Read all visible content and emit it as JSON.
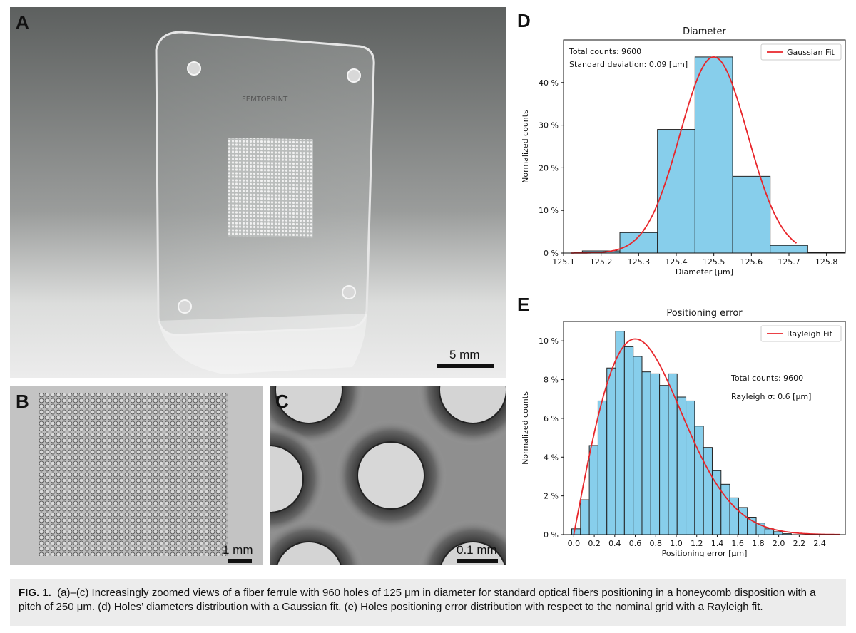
{
  "panels": {
    "a": {
      "letter": "A",
      "scale": "5 mm",
      "logo_text": "FEMTOPRINT"
    },
    "b": {
      "letter": "B",
      "scale": "1 mm"
    },
    "c": {
      "letter": "C",
      "scale": "0.1 mm"
    },
    "d": {
      "letter": "D"
    },
    "e": {
      "letter": "E"
    }
  },
  "chart_data": [
    {
      "id": "diameter",
      "type": "bar",
      "title": "Diameter",
      "xlabel": "Diameter [μm]",
      "ylabel": "Normalized counts",
      "xlim": [
        125.1,
        125.85
      ],
      "ylim": [
        0,
        50
      ],
      "xticks": [
        "125.1",
        "125.2",
        "125.3",
        "125.4",
        "125.5",
        "125.6",
        "125.7",
        "125.8"
      ],
      "yticks": [
        "0 %",
        "10 %",
        "20 %",
        "30 %",
        "40 %"
      ],
      "bin_width": 0.1,
      "bin_starts": [
        125.15,
        125.25,
        125.35,
        125.45,
        125.55,
        125.65,
        125.75
      ],
      "values": [
        0.5,
        4.8,
        29.0,
        46.0,
        18.0,
        1.8,
        0.1
      ],
      "fit": {
        "name": "Gaussian Fit",
        "type": "gaussian",
        "mean": 125.5,
        "sigma": 0.09,
        "peak": 46.0
      },
      "annotations": [
        "Total counts: 9600",
        "Standard deviation: 0.09 [μm]"
      ],
      "legend_position": "top-right",
      "colors": {
        "bar": "#87ceeb",
        "fit": "#e8262b",
        "edge": "#222222"
      }
    },
    {
      "id": "positioning",
      "type": "bar",
      "title": "Positioning error",
      "xlabel": "Positioning error [μm]",
      "ylabel": "Normalized counts",
      "xlim": [
        -0.1,
        2.65
      ],
      "ylim": [
        0,
        11
      ],
      "xticks": [
        "0.0",
        "0.2",
        "0.4",
        "0.6",
        "0.8",
        "1.0",
        "1.2",
        "1.4",
        "1.6",
        "1.8",
        "2.0",
        "2.2",
        "2.4"
      ],
      "yticks": [
        "0 %",
        "2 %",
        "4 %",
        "6 %",
        "8 %",
        "10 %"
      ],
      "bin_width": 0.0857,
      "bin_starts": [
        -0.02,
        0.0657,
        0.1514,
        0.2371,
        0.3229,
        0.4086,
        0.4943,
        0.58,
        0.6657,
        0.7514,
        0.8371,
        0.9229,
        1.0086,
        1.0943,
        1.18,
        1.2657,
        1.3514,
        1.4371,
        1.5229,
        1.6086,
        1.6943,
        1.78,
        1.8657,
        1.9514,
        2.0371
      ],
      "values": [
        0.3,
        1.8,
        4.6,
        6.9,
        8.6,
        10.5,
        9.7,
        9.2,
        8.4,
        8.3,
        7.7,
        8.3,
        7.1,
        6.9,
        5.6,
        4.5,
        3.3,
        2.6,
        1.9,
        1.4,
        0.9,
        0.6,
        0.3,
        0.15,
        0.05
      ],
      "fit": {
        "name": "Rayleigh Fit",
        "type": "rayleigh",
        "sigma": 0.6,
        "peak": 10.1,
        "x_max": 2.6
      },
      "annotations": [
        "Total counts: 9600",
        "Rayleigh σ: 0.6 [μm]"
      ],
      "legend_position": "top-right",
      "colors": {
        "bar": "#87ceeb",
        "fit": "#e8262b",
        "edge": "#222222"
      }
    }
  ],
  "caption": {
    "label": "FIG. 1.",
    "text_line1": "(a)–(c) Increasingly zoomed views of a fiber ferrule with 960 holes of 125 μm in diameter for standard optical fibers positioning in a honeycomb disposition with a",
    "text_line2": "pitch of 250 μm. (d) Holes’ diameters distribution with a Gaussian fit. (e) Holes positioning error distribution with respect to the nominal grid with a Rayleigh fit."
  }
}
